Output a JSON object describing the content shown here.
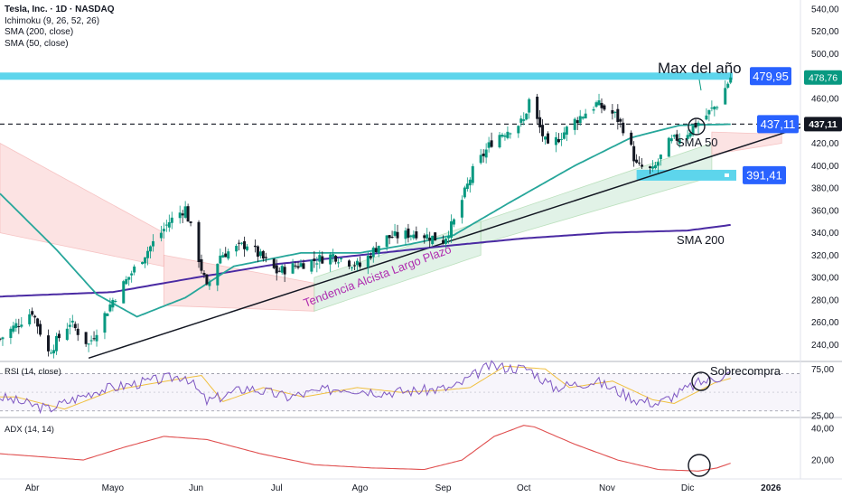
{
  "header": {
    "title": "Tesla, Inc. · 1D · NASDAQ",
    "indicators": [
      "Ichimoku (9, 26, 52, 26)",
      "SMA (200, close)",
      "SMA (50, close)"
    ]
  },
  "colors": {
    "up": "#089981",
    "down": "#131722",
    "resistance": "#5dd5ec",
    "support": "#5dd5ec",
    "sma50": "#26a69a",
    "sma200": "#4a2aa3",
    "cloud_bull": "#d8eee0",
    "cloud_bear": "#fbdada",
    "rsi": "#7e57c2",
    "rsi_ma": "#f0c040",
    "adx": "#e05050",
    "trend": "#131722",
    "trend_label": "#b02eb0",
    "badge": "#2962ff"
  },
  "chart_data": [
    {
      "type": "candlestick",
      "pane": "price",
      "x_range": [
        "2025-03-20",
        "2026-01-12"
      ],
      "ylim": [
        225,
        548
      ],
      "y_ticks": [
        240,
        260,
        280,
        300,
        320,
        340,
        360,
        380,
        400,
        420,
        440,
        460,
        500,
        520,
        540
      ],
      "x_tick_labels": [
        "Abr",
        "Mayo",
        "Jun",
        "Jul",
        "Ago",
        "Sep",
        "Oct",
        "Nov",
        "Dic",
        "2026"
      ],
      "x_tick_dates": [
        "2025-04-01",
        "2025-05-01",
        "2025-06-01",
        "2025-07-01",
        "2025-08-01",
        "2025-09-01",
        "2025-10-01",
        "2025-11-01",
        "2025-12-01",
        "2026-01-01"
      ],
      "close_waypoints": [
        [
          "2025-03-20",
          245
        ],
        [
          "2025-04-01",
          270
        ],
        [
          "2025-04-07",
          233
        ],
        [
          "2025-04-15",
          260
        ],
        [
          "2025-04-22",
          240
        ],
        [
          "2025-05-01",
          280
        ],
        [
          "2025-05-12",
          318
        ],
        [
          "2025-05-22",
          350
        ],
        [
          "2025-05-28",
          362
        ],
        [
          "2025-06-05",
          290
        ],
        [
          "2025-06-10",
          320
        ],
        [
          "2025-06-20",
          330
        ],
        [
          "2025-07-01",
          305
        ],
        [
          "2025-07-10",
          312
        ],
        [
          "2025-07-22",
          320
        ],
        [
          "2025-08-01",
          310
        ],
        [
          "2025-08-10",
          335
        ],
        [
          "2025-08-22",
          340
        ],
        [
          "2025-09-01",
          333
        ],
        [
          "2025-09-05",
          350
        ],
        [
          "2025-09-12",
          395
        ],
        [
          "2025-09-20",
          425
        ],
        [
          "2025-10-01",
          440
        ],
        [
          "2025-10-03",
          458
        ],
        [
          "2025-10-10",
          415
        ],
        [
          "2025-10-20",
          440
        ],
        [
          "2025-10-28",
          455
        ],
        [
          "2025-11-04",
          445
        ],
        [
          "2025-11-08",
          430
        ],
        [
          "2025-11-12",
          400
        ],
        [
          "2025-11-18",
          395
        ],
        [
          "2025-11-24",
          420
        ],
        [
          "2025-12-01",
          430
        ],
        [
          "2025-12-08",
          445
        ],
        [
          "2025-12-12",
          455
        ],
        [
          "2025-12-17",
          478.76
        ]
      ],
      "sma50_waypoints": [
        [
          "2025-03-20",
          375
        ],
        [
          "2025-04-10",
          325
        ],
        [
          "2025-04-25",
          285
        ],
        [
          "2025-05-10",
          265
        ],
        [
          "2025-05-28",
          282
        ],
        [
          "2025-06-15",
          310
        ],
        [
          "2025-07-10",
          322
        ],
        [
          "2025-08-01",
          322
        ],
        [
          "2025-08-20",
          330
        ],
        [
          "2025-09-05",
          338
        ],
        [
          "2025-09-25",
          366
        ],
        [
          "2025-10-20",
          400
        ],
        [
          "2025-11-10",
          425
        ],
        [
          "2025-11-28",
          436
        ],
        [
          "2025-12-17",
          437
        ]
      ],
      "sma200_waypoints": [
        [
          "2025-03-20",
          283
        ],
        [
          "2025-05-01",
          287
        ],
        [
          "2025-06-01",
          300
        ],
        [
          "2025-07-01",
          312
        ],
        [
          "2025-08-01",
          320
        ],
        [
          "2025-09-01",
          328
        ],
        [
          "2025-10-01",
          335
        ],
        [
          "2025-11-01",
          340
        ],
        [
          "2025-12-01",
          342
        ],
        [
          "2025-12-17",
          347
        ]
      ],
      "cloud": [
        {
          "from": "2025-03-20",
          "to": "2025-05-20",
          "kind": "bear",
          "top": [
            420,
            340
          ],
          "bottom": [
            340,
            310
          ]
        },
        {
          "from": "2025-05-20",
          "to": "2025-07-15",
          "kind": "bear",
          "top": [
            320,
            295
          ],
          "bottom": [
            275,
            270
          ]
        },
        {
          "from": "2025-07-15",
          "to": "2025-09-15",
          "kind": "bull",
          "top": [
            300,
            350
          ],
          "bottom": [
            270,
            320
          ]
        },
        {
          "from": "2025-09-15",
          "to": "2025-12-10",
          "kind": "bull",
          "top": [
            350,
            420
          ],
          "bottom": [
            330,
            390
          ]
        },
        {
          "from": "2025-12-10",
          "to": "2026-01-05",
          "kind": "bear",
          "top": [
            430,
            428
          ],
          "bottom": [
            410,
            420
          ]
        }
      ],
      "levels": [
        {
          "name": "resistance",
          "value": 479.95,
          "label": "479,95",
          "style": "band"
        },
        {
          "name": "current",
          "value": 437.11,
          "label": "437,11",
          "style": "dashed"
        },
        {
          "name": "support",
          "value": 391.41,
          "label": "391,41",
          "style": "band"
        }
      ],
      "last_price": "478,76",
      "last_price_value": 478.76,
      "current_price_label": "437,11",
      "trendline": {
        "from": [
          "2025-04-22",
          228
        ],
        "to": [
          "2026-01-12",
          434
        ]
      },
      "annotations": [
        "Max del año",
        "SMA 50",
        "SMA 200",
        "Tendencia Alcista Largo Plazo"
      ]
    },
    {
      "type": "line",
      "pane": "rsi",
      "title": "RSI (14, close)",
      "y_ticks": [
        "75,00",
        "25,00"
      ],
      "y_tick_values": [
        75,
        25
      ],
      "bands": [
        70,
        50,
        30
      ],
      "ylim": [
        23,
        83
      ],
      "rsi_waypoints": [
        [
          "2025-03-20",
          45
        ],
        [
          "2025-04-07",
          32
        ],
        [
          "2025-04-25",
          52
        ],
        [
          "2025-05-15",
          62
        ],
        [
          "2025-05-28",
          68
        ],
        [
          "2025-06-05",
          40
        ],
        [
          "2025-06-20",
          55
        ],
        [
          "2025-07-05",
          45
        ],
        [
          "2025-07-25",
          55
        ],
        [
          "2025-08-10",
          50
        ],
        [
          "2025-08-25",
          52
        ],
        [
          "2025-09-05",
          55
        ],
        [
          "2025-09-18",
          78
        ],
        [
          "2025-10-03",
          75
        ],
        [
          "2025-10-12",
          55
        ],
        [
          "2025-10-28",
          62
        ],
        [
          "2025-11-12",
          42
        ],
        [
          "2025-11-20",
          38
        ],
        [
          "2025-12-05",
          60
        ],
        [
          "2025-12-17",
          70
        ]
      ],
      "annotation": "Sobrecompra"
    },
    {
      "type": "line",
      "pane": "adx",
      "title": "ADX (14, 14)",
      "y_ticks": [
        "40,00",
        "20,00"
      ],
      "y_tick_values": [
        40,
        20
      ],
      "ylim": [
        8,
        47
      ],
      "adx_waypoints": [
        [
          "2025-03-20",
          24
        ],
        [
          "2025-04-05",
          22
        ],
        [
          "2025-04-20",
          20
        ],
        [
          "2025-05-05",
          28
        ],
        [
          "2025-05-20",
          35
        ],
        [
          "2025-06-05",
          33
        ],
        [
          "2025-06-25",
          24
        ],
        [
          "2025-07-15",
          17
        ],
        [
          "2025-08-05",
          15
        ],
        [
          "2025-08-25",
          14
        ],
        [
          "2025-09-08",
          20
        ],
        [
          "2025-09-20",
          35
        ],
        [
          "2025-10-01",
          42
        ],
        [
          "2025-10-05",
          41
        ],
        [
          "2025-10-20",
          30
        ],
        [
          "2025-11-05",
          20
        ],
        [
          "2025-11-20",
          14
        ],
        [
          "2025-12-05",
          13
        ],
        [
          "2025-12-12",
          15
        ],
        [
          "2025-12-17",
          18
        ]
      ]
    }
  ]
}
